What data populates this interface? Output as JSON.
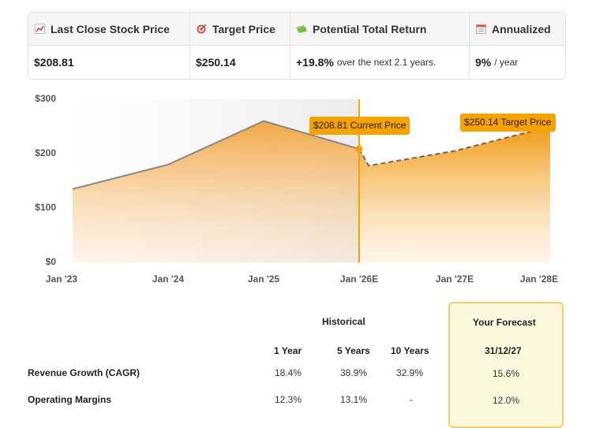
{
  "summary": {
    "last_close": {
      "icon": "chart-icon",
      "label": "Last Close Stock Price",
      "value": "$208.81"
    },
    "target": {
      "icon": "target-icon",
      "label": "Target Price",
      "value": "$250.14"
    },
    "return": {
      "icon": "money-icon",
      "label": "Potential Total Return",
      "value": "+19.8%",
      "note": "over the next 2.1 years."
    },
    "annualized": {
      "icon": "calendar-icon",
      "label": "Annualized",
      "value": "9%",
      "note": "/ year"
    }
  },
  "chart_data": {
    "type": "area",
    "y_ticks": [
      "$300",
      "$200",
      "$100",
      "$0"
    ],
    "x_ticks": [
      "Jan '23",
      "Jan '24",
      "Jan '25",
      "Jan '26E",
      "Jan '27E",
      "Jan '28E"
    ],
    "ylim": [
      0,
      300
    ],
    "historical": {
      "x": [
        2023.0,
        2024.0,
        2025.0,
        2026.0
      ],
      "y": [
        135,
        180,
        260,
        208.81
      ]
    },
    "forecast": {
      "x": [
        2026.0,
        2026.1,
        2027.0,
        2028.0
      ],
      "y": [
        208.81,
        178,
        205,
        250.14
      ]
    },
    "current_label": "$208.81 Current Price",
    "target_label": "$250.14 Target Price",
    "colors": {
      "accent": "#f4a300",
      "line": "#888888"
    }
  },
  "metrics": {
    "historical_header": "Historical",
    "forecast_header": "Your Forecast",
    "columns": [
      "1 Year",
      "5 Years",
      "10 Years"
    ],
    "forecast_date": "31/12/27",
    "rows": [
      {
        "label": "Revenue Growth (CAGR)",
        "values": [
          "18.4%",
          "38.9%",
          "32.9%"
        ],
        "forecast": "15.6%"
      },
      {
        "label": "Operating Margins",
        "values": [
          "12.3%",
          "13.1%",
          "-"
        ],
        "forecast": "12.0%"
      }
    ]
  }
}
